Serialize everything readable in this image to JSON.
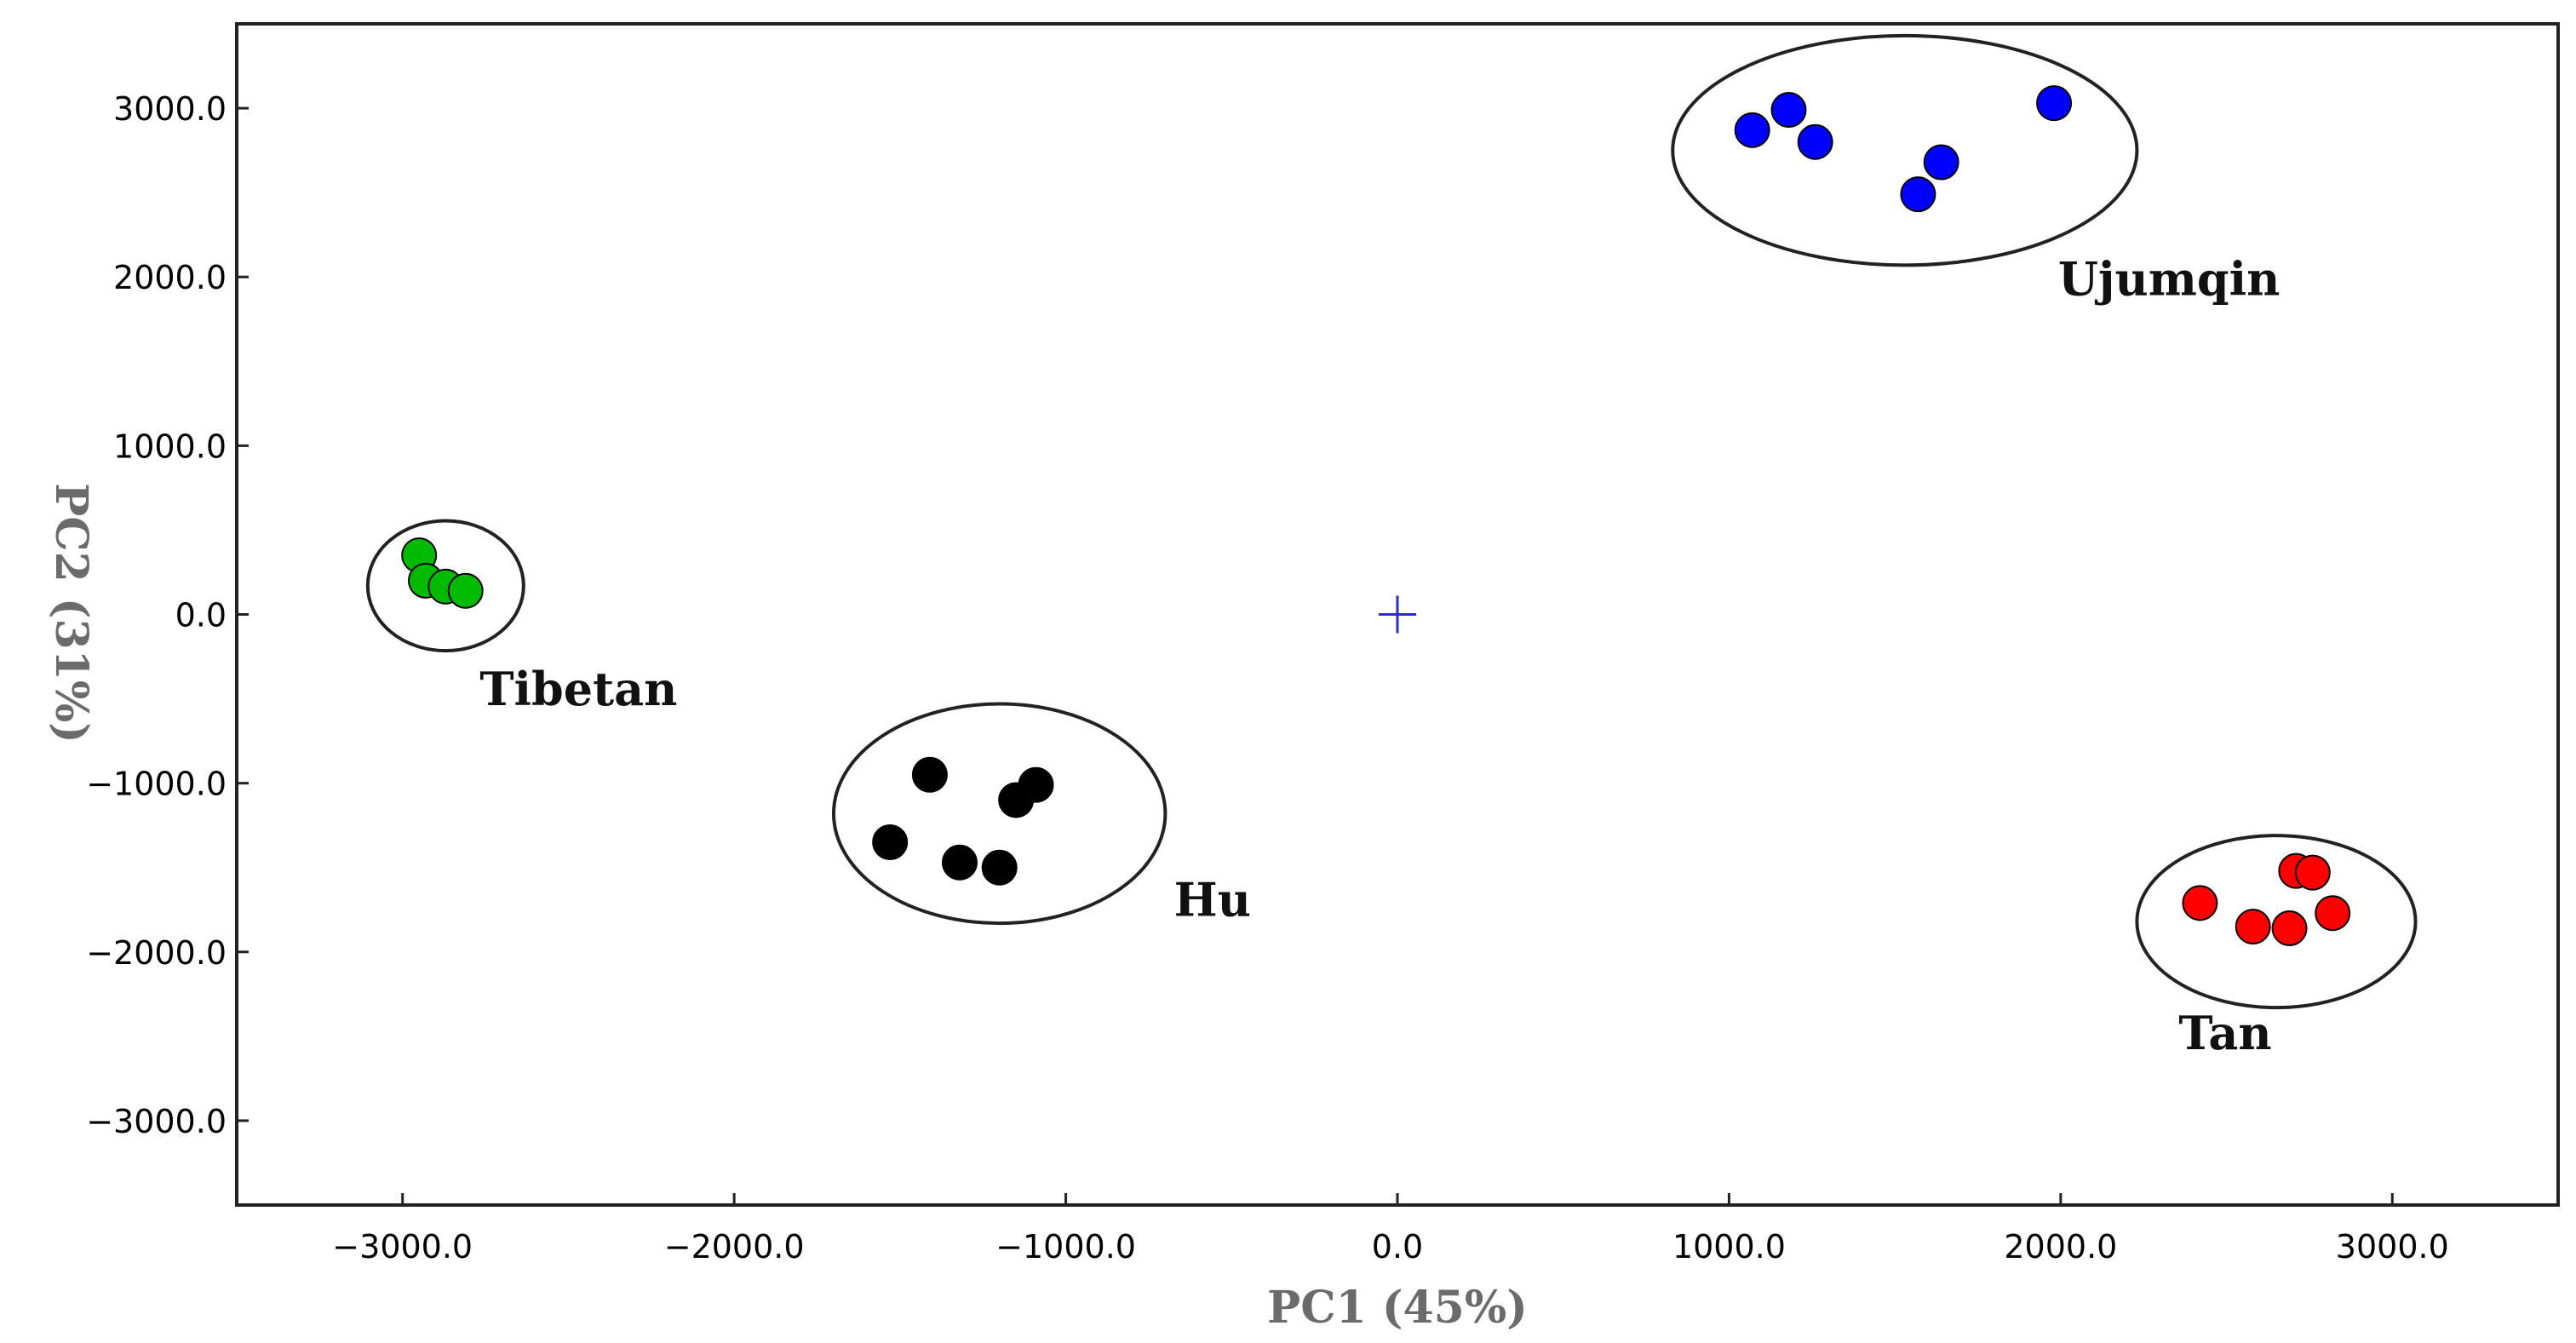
{
  "chart_data": {
    "type": "scatter",
    "title": "",
    "xlabel": "PC1 (45%)",
    "ylabel": "PC2 (31%)",
    "xlim": [
      -3500,
      3500
    ],
    "ylim": [
      -3500,
      3500
    ],
    "xticks": [
      -3000,
      -2000,
      -1000,
      0,
      1000,
      2000,
      3000
    ],
    "yticks": [
      -3000,
      -2000,
      -1000,
      0,
      1000,
      2000,
      3000
    ],
    "xtick_labels": [
      "−3000.0",
      "−2000.0",
      "−1000.0",
      "0.0",
      "1000.0",
      "2000.0",
      "3000.0"
    ],
    "ytick_labels": [
      "−3000.0",
      "−2000.0",
      "−1000.0",
      "0.0",
      "1000.0",
      "2000.0",
      "3000.0"
    ],
    "grid": false,
    "origin_marker": "+",
    "series": [
      {
        "name": "Ujumqin",
        "color": "#0000ff",
        "points": [
          {
            "x": 1070,
            "y": 2870
          },
          {
            "x": 1180,
            "y": 2990
          },
          {
            "x": 1260,
            "y": 2800
          },
          {
            "x": 1570,
            "y": 2490
          },
          {
            "x": 1640,
            "y": 2680
          },
          {
            "x": 1980,
            "y": 3030
          }
        ],
        "ellipse": {
          "cx": 1530,
          "cy": 2750,
          "rx": 700,
          "ry": 680
        }
      },
      {
        "name": "Tibetan",
        "color": "#00bb00",
        "points": [
          {
            "x": -2950,
            "y": 350
          },
          {
            "x": -2930,
            "y": 200
          },
          {
            "x": -2870,
            "y": 165
          },
          {
            "x": -2810,
            "y": 140
          }
        ],
        "ellipse": {
          "cx": -2870,
          "cy": 170,
          "rx": 235,
          "ry": 385
        }
      },
      {
        "name": "Hu",
        "color": "#000000",
        "points": [
          {
            "x": -1410,
            "y": -950
          },
          {
            "x": -1150,
            "y": -1100
          },
          {
            "x": -1090,
            "y": -1010
          },
          {
            "x": -1530,
            "y": -1350
          },
          {
            "x": -1320,
            "y": -1470
          },
          {
            "x": -1200,
            "y": -1500
          }
        ],
        "ellipse": {
          "cx": -1200,
          "cy": -1180,
          "rx": 500,
          "ry": 650
        }
      },
      {
        "name": "Tan",
        "color": "#ff0000",
        "points": [
          {
            "x": 2420,
            "y": -1710
          },
          {
            "x": 2580,
            "y": -1850
          },
          {
            "x": 2690,
            "y": -1860
          },
          {
            "x": 2710,
            "y": -1520
          },
          {
            "x": 2760,
            "y": -1530
          },
          {
            "x": 2820,
            "y": -1770
          }
        ],
        "ellipse": {
          "cx": 2650,
          "cy": -1820,
          "rx": 420,
          "ry": 510
        }
      }
    ]
  }
}
